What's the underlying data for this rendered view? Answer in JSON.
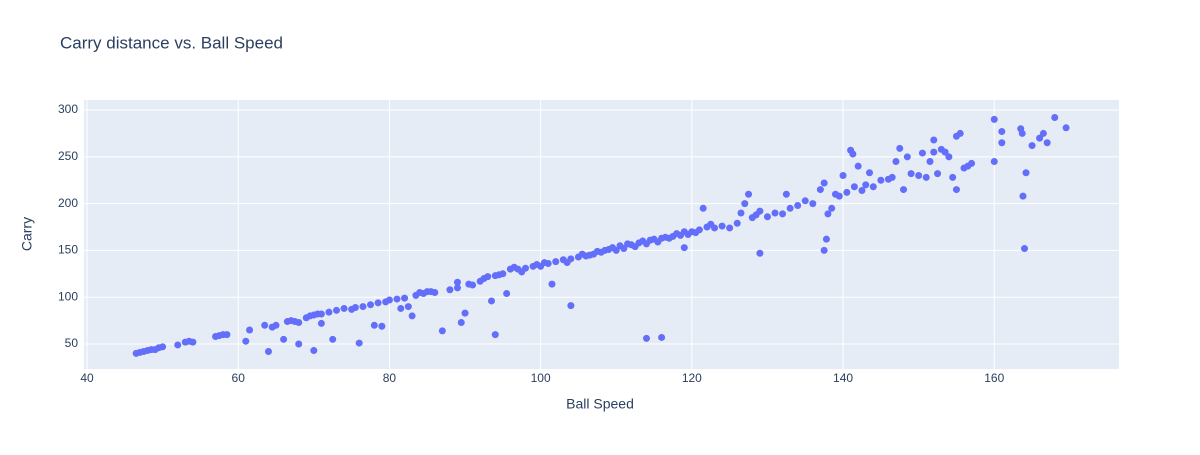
{
  "chart_data": {
    "type": "scatter",
    "title": "Carry distance vs. Ball Speed",
    "x_label": "Ball Speed",
    "y_label": "Carry",
    "x": [
      46.5,
      47,
      47.5,
      48,
      48.5,
      49,
      49.5,
      50,
      52,
      53,
      53.5,
      54,
      57,
      57.5,
      58,
      58.5,
      61,
      61.5,
      63.5,
      64,
      64.5,
      65,
      66,
      66.5,
      67,
      67.5,
      68,
      68,
      69,
      69.5,
      70,
      70.5,
      70,
      71,
      71,
      72,
      72.5,
      73,
      74,
      75,
      75.5,
      76,
      76.5,
      77.5,
      78,
      78.5,
      79,
      79.5,
      80,
      81,
      81.5,
      82,
      82.5,
      83,
      83.5,
      84,
      84.5,
      85,
      85.5,
      86,
      87,
      88,
      89,
      89,
      89.5,
      90,
      90.5,
      91,
      92,
      92.5,
      93,
      93.5,
      94,
      94,
      94.5,
      95,
      95.5,
      96,
      96.5,
      97,
      97.5,
      98,
      99,
      99.5,
      100,
      100.5,
      101,
      101.5,
      102,
      103,
      103.5,
      104,
      104,
      105,
      105.5,
      106,
      106.5,
      107,
      107.5,
      108,
      108.5,
      109,
      109.5,
      110,
      110.5,
      111,
      111.5,
      112,
      112.5,
      113,
      113.5,
      114,
      114,
      114.5,
      115,
      115.5,
      116,
      116,
      116.5,
      117,
      117.5,
      118,
      118.5,
      119,
      119,
      119.5,
      120,
      120.5,
      121,
      121.5,
      122,
      122.5,
      123,
      124,
      125,
      126,
      126.5,
      127,
      127.5,
      128,
      128.5,
      129,
      129,
      130,
      131,
      132,
      132.5,
      133,
      134,
      135,
      136,
      137,
      137.5,
      137.5,
      137.8,
      138,
      138.5,
      139,
      139.5,
      140,
      140.5,
      141,
      141.3,
      141.5,
      142,
      142.5,
      143,
      143.5,
      144,
      145,
      146,
      146.5,
      147,
      147.5,
      148,
      148.5,
      149,
      150,
      150.5,
      151,
      151.5,
      152,
      152,
      152.5,
      153,
      153.5,
      154,
      154.5,
      155,
      155,
      155.5,
      156,
      156.5,
      157,
      160,
      160,
      161,
      161,
      163.5,
      163.7,
      163.8,
      164,
      164.2,
      165,
      166,
      166.5,
      167,
      168,
      169.5
    ],
    "y": [
      40,
      41,
      42,
      43,
      44,
      44,
      46,
      47,
      49,
      52,
      53,
      52,
      58,
      59,
      60,
      60,
      53,
      65,
      70,
      42,
      68,
      70,
      55,
      74,
      75,
      74,
      73,
      50,
      78,
      80,
      81,
      82,
      43,
      82,
      72,
      84,
      55,
      86,
      88,
      87,
      89,
      51,
      90,
      92,
      70,
      94,
      69,
      95,
      97,
      98,
      88,
      99,
      90,
      80,
      102,
      105,
      104,
      106,
      106,
      105,
      64,
      108,
      110,
      116,
      73,
      83,
      114,
      113,
      117,
      120,
      122,
      96,
      60,
      123,
      124,
      125,
      104,
      130,
      132,
      130,
      127,
      131,
      133,
      135,
      133,
      137,
      136,
      114,
      138,
      140,
      137,
      141,
      91,
      143,
      146,
      144,
      145,
      146,
      149,
      148,
      150,
      151,
      153,
      150,
      155,
      152,
      157,
      156,
      154,
      158,
      160,
      56,
      157,
      161,
      162,
      159,
      57,
      163,
      164,
      163,
      165,
      168,
      166,
      170,
      153,
      167,
      170,
      169,
      172,
      195,
      175,
      178,
      174,
      176,
      174,
      179,
      190,
      200,
      210,
      185,
      188,
      147,
      192,
      186,
      190,
      189,
      210,
      195,
      198,
      203,
      200,
      215,
      222,
      150,
      162,
      189,
      195,
      210,
      208,
      230,
      212,
      257,
      253,
      218,
      240,
      214,
      220,
      233,
      218,
      225,
      226,
      228,
      245,
      259,
      215,
      250,
      232,
      230,
      254,
      228,
      245,
      255,
      268,
      232,
      258,
      255,
      250,
      228,
      215,
      272,
      275,
      238,
      240,
      243,
      245,
      290,
      277,
      265,
      280,
      275,
      208,
      152,
      233,
      262,
      270,
      275,
      265,
      292,
      281
    ],
    "color": "#636efa",
    "xlim": [
      39.6,
      176.5
    ],
    "ylim": [
      23.3,
      310.7
    ],
    "xticks": [
      40,
      60,
      80,
      100,
      120,
      140,
      160
    ],
    "yticks": [
      50,
      100,
      150,
      200,
      250,
      300
    ],
    "grid": true
  }
}
